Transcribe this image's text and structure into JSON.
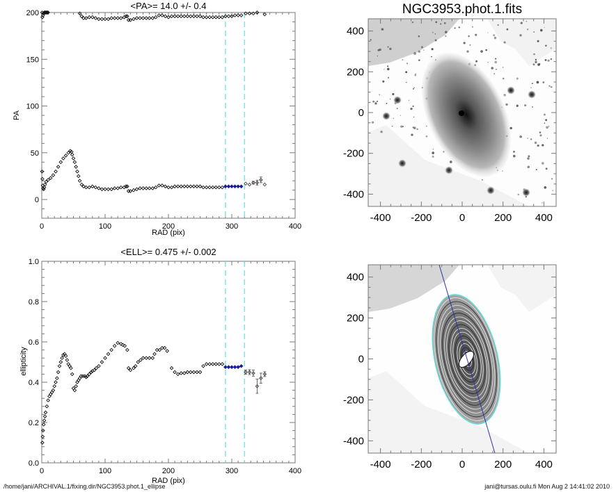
{
  "chart_data": [
    {
      "type": "scatter",
      "id": "pa",
      "title": "<PA>=  14.0 +/-   0.4",
      "xlabel": "RAD (pix)",
      "ylabel": "PA",
      "xlim": [
        0,
        400
      ],
      "ylim": [
        -20,
        200
      ],
      "xticks": [
        "0",
        "100",
        "200",
        "300",
        "400"
      ],
      "yticks": [
        "0",
        "50",
        "100",
        "150",
        "200"
      ],
      "ytick_values": [
        0,
        50,
        100,
        150,
        200
      ],
      "xtick_values": [
        0,
        100,
        200,
        300,
        400
      ],
      "fit_range": [
        290,
        320
      ],
      "marker_color": "#000000",
      "fit_color": "#1a1aa0",
      "range_line_color": "#66dddd",
      "lower_branch": [
        [
          0.5,
          30
        ],
        [
          1,
          22
        ],
        [
          1.5,
          15
        ],
        [
          2,
          12
        ],
        [
          3,
          11
        ],
        [
          4,
          13
        ],
        [
          5,
          16
        ],
        [
          7,
          19
        ],
        [
          10,
          21
        ],
        [
          14,
          23
        ],
        [
          18,
          26
        ],
        [
          22,
          30
        ],
        [
          26,
          35
        ],
        [
          30,
          40
        ],
        [
          34,
          44
        ],
        [
          38,
          47
        ],
        [
          42,
          50
        ],
        [
          45,
          52
        ],
        [
          47,
          51
        ],
        [
          48,
          48
        ],
        [
          50,
          44
        ],
        [
          52,
          40
        ],
        [
          54,
          35
        ],
        [
          56,
          30
        ],
        [
          58,
          25
        ],
        [
          60,
          20
        ],
        [
          63,
          16
        ],
        [
          66,
          14
        ],
        [
          70,
          13
        ],
        [
          75,
          13
        ],
        [
          80,
          14
        ],
        [
          85,
          13
        ],
        [
          90,
          12
        ],
        [
          95,
          11
        ],
        [
          100,
          11
        ],
        [
          105,
          11
        ],
        [
          110,
          11
        ],
        [
          115,
          12
        ],
        [
          120,
          12
        ],
        [
          125,
          13
        ],
        [
          130,
          13
        ],
        [
          133,
          14
        ],
        [
          135,
          14
        ],
        [
          137,
          9
        ],
        [
          140,
          9
        ],
        [
          145,
          10
        ],
        [
          150,
          11
        ],
        [
          155,
          12
        ],
        [
          160,
          12
        ],
        [
          165,
          12
        ],
        [
          170,
          12
        ],
        [
          175,
          12
        ],
        [
          180,
          13
        ],
        [
          185,
          15
        ],
        [
          190,
          15
        ],
        [
          195,
          14
        ],
        [
          200,
          13
        ],
        [
          205,
          13
        ],
        [
          210,
          14
        ],
        [
          215,
          14
        ],
        [
          220,
          14
        ],
        [
          225,
          14
        ],
        [
          230,
          14
        ],
        [
          235,
          14
        ],
        [
          240,
          14
        ],
        [
          245,
          14
        ],
        [
          250,
          14
        ],
        [
          255,
          13
        ],
        [
          260,
          13
        ],
        [
          265,
          13
        ],
        [
          270,
          13
        ],
        [
          275,
          13
        ],
        [
          280,
          13
        ],
        [
          285,
          13
        ]
      ],
      "fit_points": [
        [
          290,
          14
        ],
        [
          295,
          14
        ],
        [
          300,
          14
        ],
        [
          305,
          14
        ],
        [
          310,
          14
        ],
        [
          315,
          14
        ]
      ],
      "outer_points": [
        [
          322,
          17
        ],
        [
          328,
          16
        ],
        [
          334,
          18
        ],
        [
          340,
          18
        ],
        [
          346,
          21
        ],
        [
          352,
          16
        ]
      ],
      "upper_branch": [
        [
          0.5,
          200
        ],
        [
          1,
          195
        ],
        [
          2,
          197
        ],
        [
          3,
          199
        ],
        [
          4,
          200
        ],
        [
          5,
          200
        ],
        [
          6,
          200
        ],
        [
          7,
          200
        ],
        [
          8,
          200
        ],
        [
          9,
          200
        ],
        [
          10,
          200
        ],
        [
          60,
          199
        ],
        [
          63,
          196
        ],
        [
          66,
          194
        ],
        [
          70,
          194
        ],
        [
          75,
          195
        ],
        [
          80,
          195
        ],
        [
          85,
          194
        ],
        [
          90,
          193
        ],
        [
          95,
          193
        ],
        [
          100,
          193
        ],
        [
          105,
          193
        ],
        [
          110,
          194
        ],
        [
          115,
          194
        ],
        [
          120,
          194
        ],
        [
          125,
          194
        ],
        [
          130,
          195
        ],
        [
          133,
          196
        ],
        [
          135,
          196
        ],
        [
          137,
          192
        ],
        [
          140,
          192
        ],
        [
          145,
          193
        ],
        [
          150,
          194
        ],
        [
          155,
          194
        ],
        [
          160,
          194
        ],
        [
          165,
          194
        ],
        [
          170,
          194
        ],
        [
          175,
          194
        ],
        [
          180,
          195
        ],
        [
          185,
          197
        ],
        [
          190,
          197
        ],
        [
          195,
          196
        ],
        [
          200,
          195
        ],
        [
          205,
          196
        ],
        [
          210,
          196
        ],
        [
          215,
          196
        ],
        [
          220,
          196
        ],
        [
          225,
          196
        ],
        [
          230,
          196
        ],
        [
          235,
          196
        ],
        [
          240,
          196
        ],
        [
          245,
          196
        ],
        [
          250,
          196
        ],
        [
          255,
          195
        ],
        [
          260,
          195
        ],
        [
          265,
          195
        ],
        [
          270,
          195
        ],
        [
          275,
          195
        ],
        [
          280,
          195
        ],
        [
          285,
          195
        ],
        [
          290,
          196
        ],
        [
          295,
          196
        ],
        [
          300,
          196
        ],
        [
          305,
          197
        ],
        [
          310,
          197
        ],
        [
          315,
          197
        ],
        [
          322,
          199
        ],
        [
          328,
          199
        ],
        [
          334,
          199
        ],
        [
          340,
          200
        ],
        [
          352,
          198
        ]
      ]
    },
    {
      "type": "scatter",
      "id": "ell",
      "title": "<ELL>= 0.475 +/-  0.002",
      "xlabel": "RAD (pix)",
      "ylabel": "ellipticity",
      "xlim": [
        0,
        400
      ],
      "ylim": [
        0,
        1
      ],
      "xticks": [
        "0",
        "100",
        "200",
        "300",
        "400"
      ],
      "yticks": [
        "0.0",
        "0.2",
        "0.4",
        "0.6",
        "0.8",
        "1.0"
      ],
      "ytick_values": [
        0,
        0.2,
        0.4,
        0.6,
        0.8,
        1.0
      ],
      "xtick_values": [
        0,
        100,
        200,
        300,
        400
      ],
      "fit_range": [
        290,
        320
      ],
      "points": [
        [
          1,
          0.1
        ],
        [
          1.5,
          0.13
        ],
        [
          2,
          0.16
        ],
        [
          3,
          0.19
        ],
        [
          4,
          0.21
        ],
        [
          5,
          0.23
        ],
        [
          6,
          0.25
        ],
        [
          8,
          0.28
        ],
        [
          10,
          0.31
        ],
        [
          12,
          0.33
        ],
        [
          14,
          0.34
        ],
        [
          16,
          0.35
        ],
        [
          18,
          0.36
        ],
        [
          20,
          0.38
        ],
        [
          22,
          0.4
        ],
        [
          24,
          0.42
        ],
        [
          26,
          0.45
        ],
        [
          28,
          0.48
        ],
        [
          30,
          0.5
        ],
        [
          32,
          0.52
        ],
        [
          34,
          0.535
        ],
        [
          36,
          0.54
        ],
        [
          38,
          0.53
        ],
        [
          40,
          0.51
        ],
        [
          42,
          0.49
        ],
        [
          44,
          0.48
        ],
        [
          46,
          0.47
        ],
        [
          48,
          0.44
        ],
        [
          50,
          0.37
        ],
        [
          52,
          0.36
        ],
        [
          54,
          0.38
        ],
        [
          56,
          0.4
        ],
        [
          58,
          0.41
        ],
        [
          60,
          0.42
        ],
        [
          62,
          0.43
        ],
        [
          65,
          0.43
        ],
        [
          68,
          0.43
        ],
        [
          70,
          0.425
        ],
        [
          72,
          0.43
        ],
        [
          75,
          0.44
        ],
        [
          78,
          0.45
        ],
        [
          80,
          0.455
        ],
        [
          83,
          0.46
        ],
        [
          86,
          0.47
        ],
        [
          90,
          0.48
        ],
        [
          95,
          0.5
        ],
        [
          100,
          0.52
        ],
        [
          105,
          0.54
        ],
        [
          110,
          0.56
        ],
        [
          115,
          0.58
        ],
        [
          120,
          0.595
        ],
        [
          125,
          0.59
        ],
        [
          128,
          0.585
        ],
        [
          131,
          0.58
        ],
        [
          135,
          0.56
        ],
        [
          137,
          0.47
        ],
        [
          140,
          0.46
        ],
        [
          145,
          0.47
        ],
        [
          148,
          0.48
        ],
        [
          152,
          0.5
        ],
        [
          156,
          0.51
        ],
        [
          160,
          0.52
        ],
        [
          165,
          0.52
        ],
        [
          170,
          0.52
        ],
        [
          175,
          0.52
        ],
        [
          178,
          0.54
        ],
        [
          182,
          0.56
        ],
        [
          186,
          0.56
        ],
        [
          190,
          0.57
        ],
        [
          194,
          0.57
        ],
        [
          198,
          0.555
        ],
        [
          205,
          0.47
        ],
        [
          210,
          0.45
        ],
        [
          215,
          0.44
        ],
        [
          220,
          0.445
        ],
        [
          225,
          0.445
        ],
        [
          230,
          0.45
        ],
        [
          235,
          0.45
        ],
        [
          240,
          0.45
        ],
        [
          245,
          0.45
        ],
        [
          250,
          0.45
        ],
        [
          255,
          0.48
        ],
        [
          260,
          0.49
        ],
        [
          265,
          0.49
        ],
        [
          270,
          0.49
        ],
        [
          275,
          0.49
        ],
        [
          280,
          0.49
        ],
        [
          285,
          0.49
        ]
      ],
      "fit_points": [
        [
          290,
          0.475
        ],
        [
          295,
          0.475
        ],
        [
          300,
          0.475
        ],
        [
          305,
          0.475
        ],
        [
          310,
          0.475
        ],
        [
          315,
          0.48
        ]
      ],
      "outer_points": [
        [
          322,
          0.45
        ],
        [
          328,
          0.45
        ],
        [
          334,
          0.445
        ],
        [
          340,
          0.38
        ],
        [
          346,
          0.42
        ],
        [
          352,
          0.44
        ]
      ]
    }
  ],
  "images": [
    {
      "id": "galaxy",
      "title": "NGC3953.phot.1.fits",
      "xticks": [
        "-400",
        "-200",
        "0",
        "200",
        "400"
      ],
      "yticks": [
        "400",
        "200",
        "0",
        "-200",
        "-400"
      ],
      "range": [
        -460,
        460
      ]
    },
    {
      "id": "ellipses",
      "title": "",
      "xticks": [
        "-400",
        "-200",
        "0",
        "200",
        "400"
      ],
      "yticks": [
        "400",
        "200",
        "0",
        "-200",
        "-400"
      ],
      "range": [
        -460,
        460
      ],
      "contour_color": "#66dddd",
      "axis_line_color": "#3333aa"
    }
  ],
  "footer": {
    "path": "/home/jani/ARCHIVAL.1/fixing.dir/NGC3953.phot.1_ellipse",
    "stamp": "jani@tursas.oulu.fi  Mon Aug  2 14:41:02 2010"
  }
}
